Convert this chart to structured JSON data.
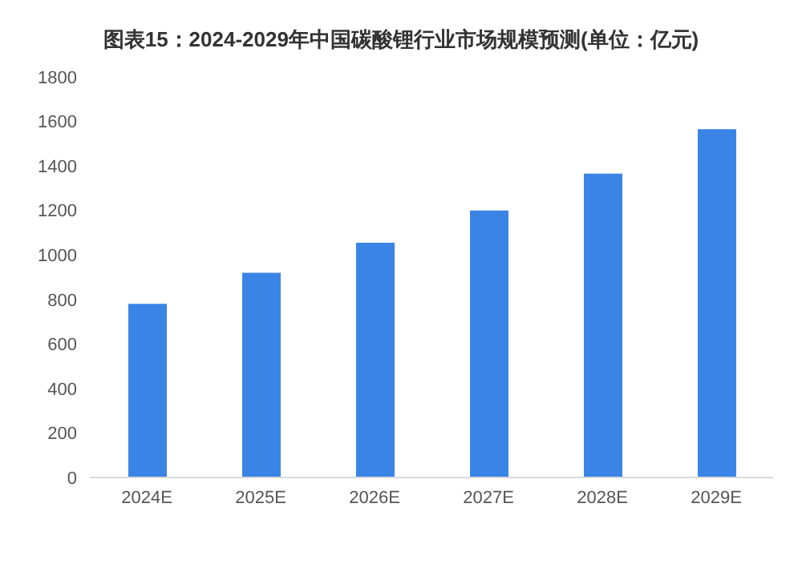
{
  "chart_data": {
    "type": "bar",
    "title": "图表15：2024-2029年中国碳酸锂行业市场规模预测(单位：亿元)",
    "categories": [
      "2024E",
      "2025E",
      "2026E",
      "2027E",
      "2028E",
      "2029E"
    ],
    "values": [
      780,
      920,
      1055,
      1200,
      1365,
      1565
    ],
    "color": "#3a84e6",
    "ylim": [
      0,
      1800
    ],
    "yticks": [
      0,
      200,
      400,
      600,
      800,
      1000,
      1200,
      1400,
      1600,
      1800
    ],
    "grid": false,
    "legend": false
  }
}
